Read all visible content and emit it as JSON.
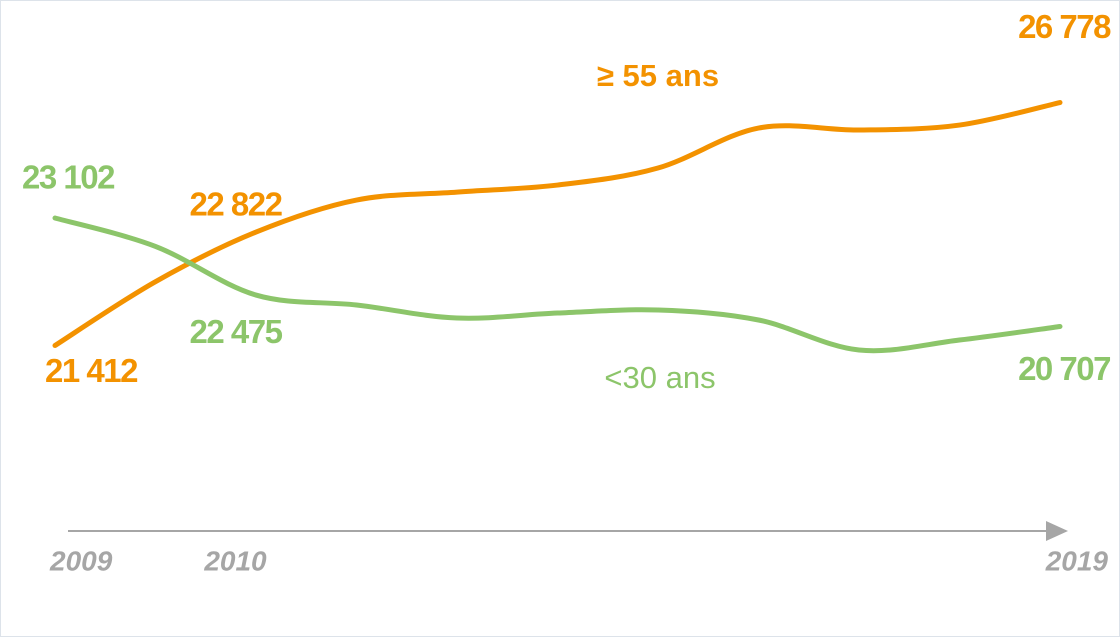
{
  "chart_data": {
    "type": "line",
    "categories": [
      "2009",
      "2010",
      null,
      null,
      null,
      null,
      null,
      null,
      null,
      null,
      "2019"
    ],
    "ylim": [
      18000,
      28600
    ],
    "y2lim": [
      16875,
      27475
    ],
    "series": [
      {
        "name": "≥ 55 ans",
        "color": "#f39200",
        "values": [
          21412,
          22822,
          23917,
          24624,
          24800,
          24955,
          25331,
          26214,
          26170,
          26280,
          26778
        ],
        "value_labels": [
          "21 412",
          "22 822",
          null,
          null,
          null,
          null,
          null,
          null,
          null,
          null,
          "26 778"
        ]
      },
      {
        "name": "<30 ans",
        "color": "#8cc56a",
        "axis": "y2",
        "values": [
          23102,
          22475,
          21401,
          21181,
          20894,
          21004,
          21070,
          20850,
          20187,
          20408,
          20707
        ],
        "value_labels": [
          "23 102",
          "22 475",
          null,
          null,
          null,
          null,
          null,
          null,
          null,
          null,
          "20 707"
        ]
      }
    ]
  }
}
